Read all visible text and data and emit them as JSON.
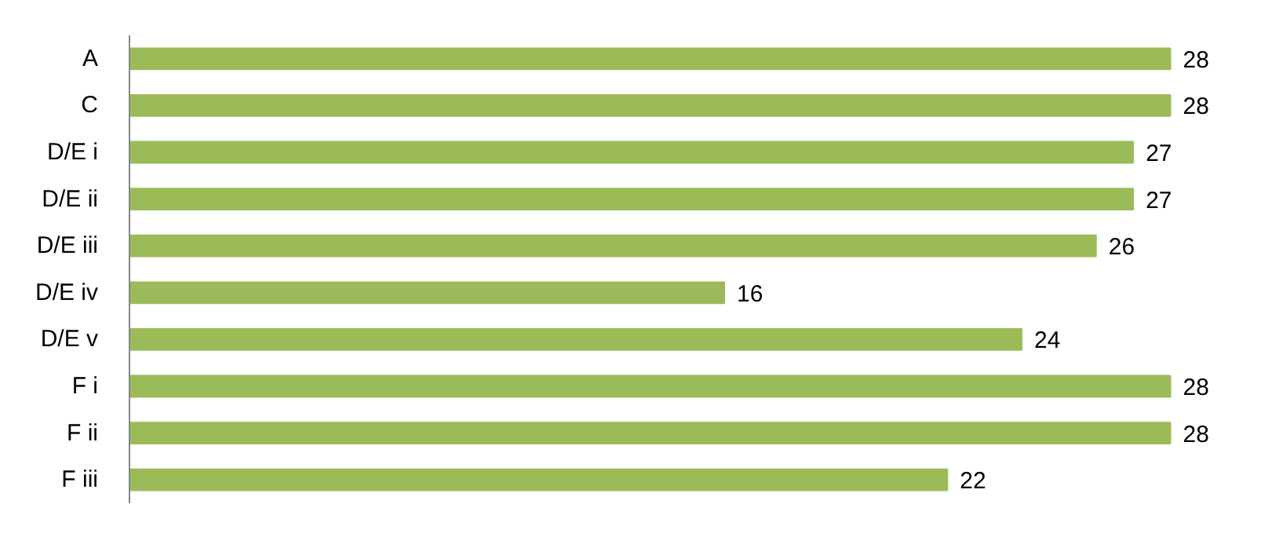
{
  "chart_data": {
    "type": "bar",
    "orientation": "horizontal",
    "categories": [
      "A",
      "C",
      "D/E i",
      "D/E ii",
      "D/E iii",
      "D/E iv",
      "D/E v",
      "F i",
      "F ii",
      "F iii"
    ],
    "values": [
      28,
      28,
      27,
      27,
      26,
      16,
      24,
      28,
      28,
      22
    ],
    "color": "#9bbb59",
    "data_labels": true,
    "grid": false,
    "tick_labels": "y"
  }
}
